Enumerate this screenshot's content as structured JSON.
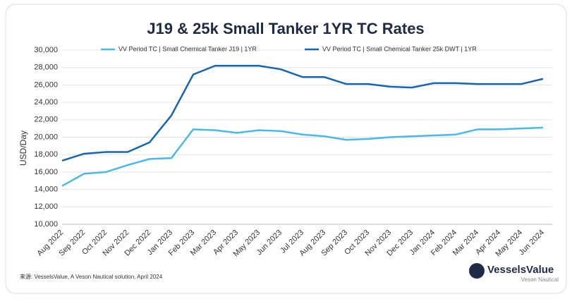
{
  "chart_data": {
    "type": "line",
    "title": "J19 & 25k Small Tanker 1YR TC Rates",
    "y_label": "USD/Day",
    "source": "来源: VesselsValue, A Veson Nautical solution, April 2024",
    "logo": "VesselsValue",
    "logo_sub": "Veson Nautical",
    "categories": [
      "Aug 2022",
      "Sep 2022",
      "Oct 2022",
      "Nov 2022",
      "Dec 2022",
      "Jan 2023",
      "Feb 2023",
      "Mar 2023",
      "Apr 2023",
      "May 2023",
      "Jun 2023",
      "Jul 2023",
      "Aug 2023",
      "Sep 2023",
      "Oct 2023",
      "Nov 2023",
      "Dec 2023",
      "Jan 2024",
      "Feb 2024",
      "Mar 2024",
      "Apr 2024",
      "May 2024",
      "Jun 2024"
    ],
    "series": [
      {
        "name": "VV Period TC | Small Chemical Tanker J19 | 1YR",
        "color": "#4ab8e8",
        "values": [
          14400,
          15800,
          16000,
          16800,
          17500,
          17600,
          20900,
          20800,
          20500,
          20800,
          20700,
          20300,
          20100,
          19700,
          19800,
          20000,
          20100,
          20200,
          20300,
          20900,
          20900,
          21000,
          21100
        ]
      },
      {
        "name": "VV Period TC | Small Chemical Tanker 25k DWT | 1YR",
        "color": "#1565b0",
        "values": [
          17300,
          18100,
          18300,
          18300,
          19400,
          22500,
          27200,
          28200,
          28200,
          28200,
          27800,
          26900,
          26900,
          26100,
          26100,
          25800,
          25700,
          26200,
          26200,
          26100,
          26100,
          26100,
          26700
        ]
      }
    ],
    "ylim": [
      10000,
      30000
    ],
    "yticks": [
      {
        "value": 10000,
        "label": "10,000"
      },
      {
        "value": 12000,
        "label": "12,000"
      },
      {
        "value": 14000,
        "label": "14,000"
      },
      {
        "value": 16000,
        "label": "16,000"
      },
      {
        "value": 18000,
        "label": "18,000"
      },
      {
        "value": 20000,
        "label": "20,000"
      },
      {
        "value": 22000,
        "label": "22,000"
      },
      {
        "value": 24000,
        "label": "24,000"
      },
      {
        "value": 26000,
        "label": "26,000"
      },
      {
        "value": 28000,
        "label": "28,000"
      },
      {
        "value": 30000,
        "label": "30,000"
      }
    ],
    "grid": true,
    "legend": "top"
  }
}
